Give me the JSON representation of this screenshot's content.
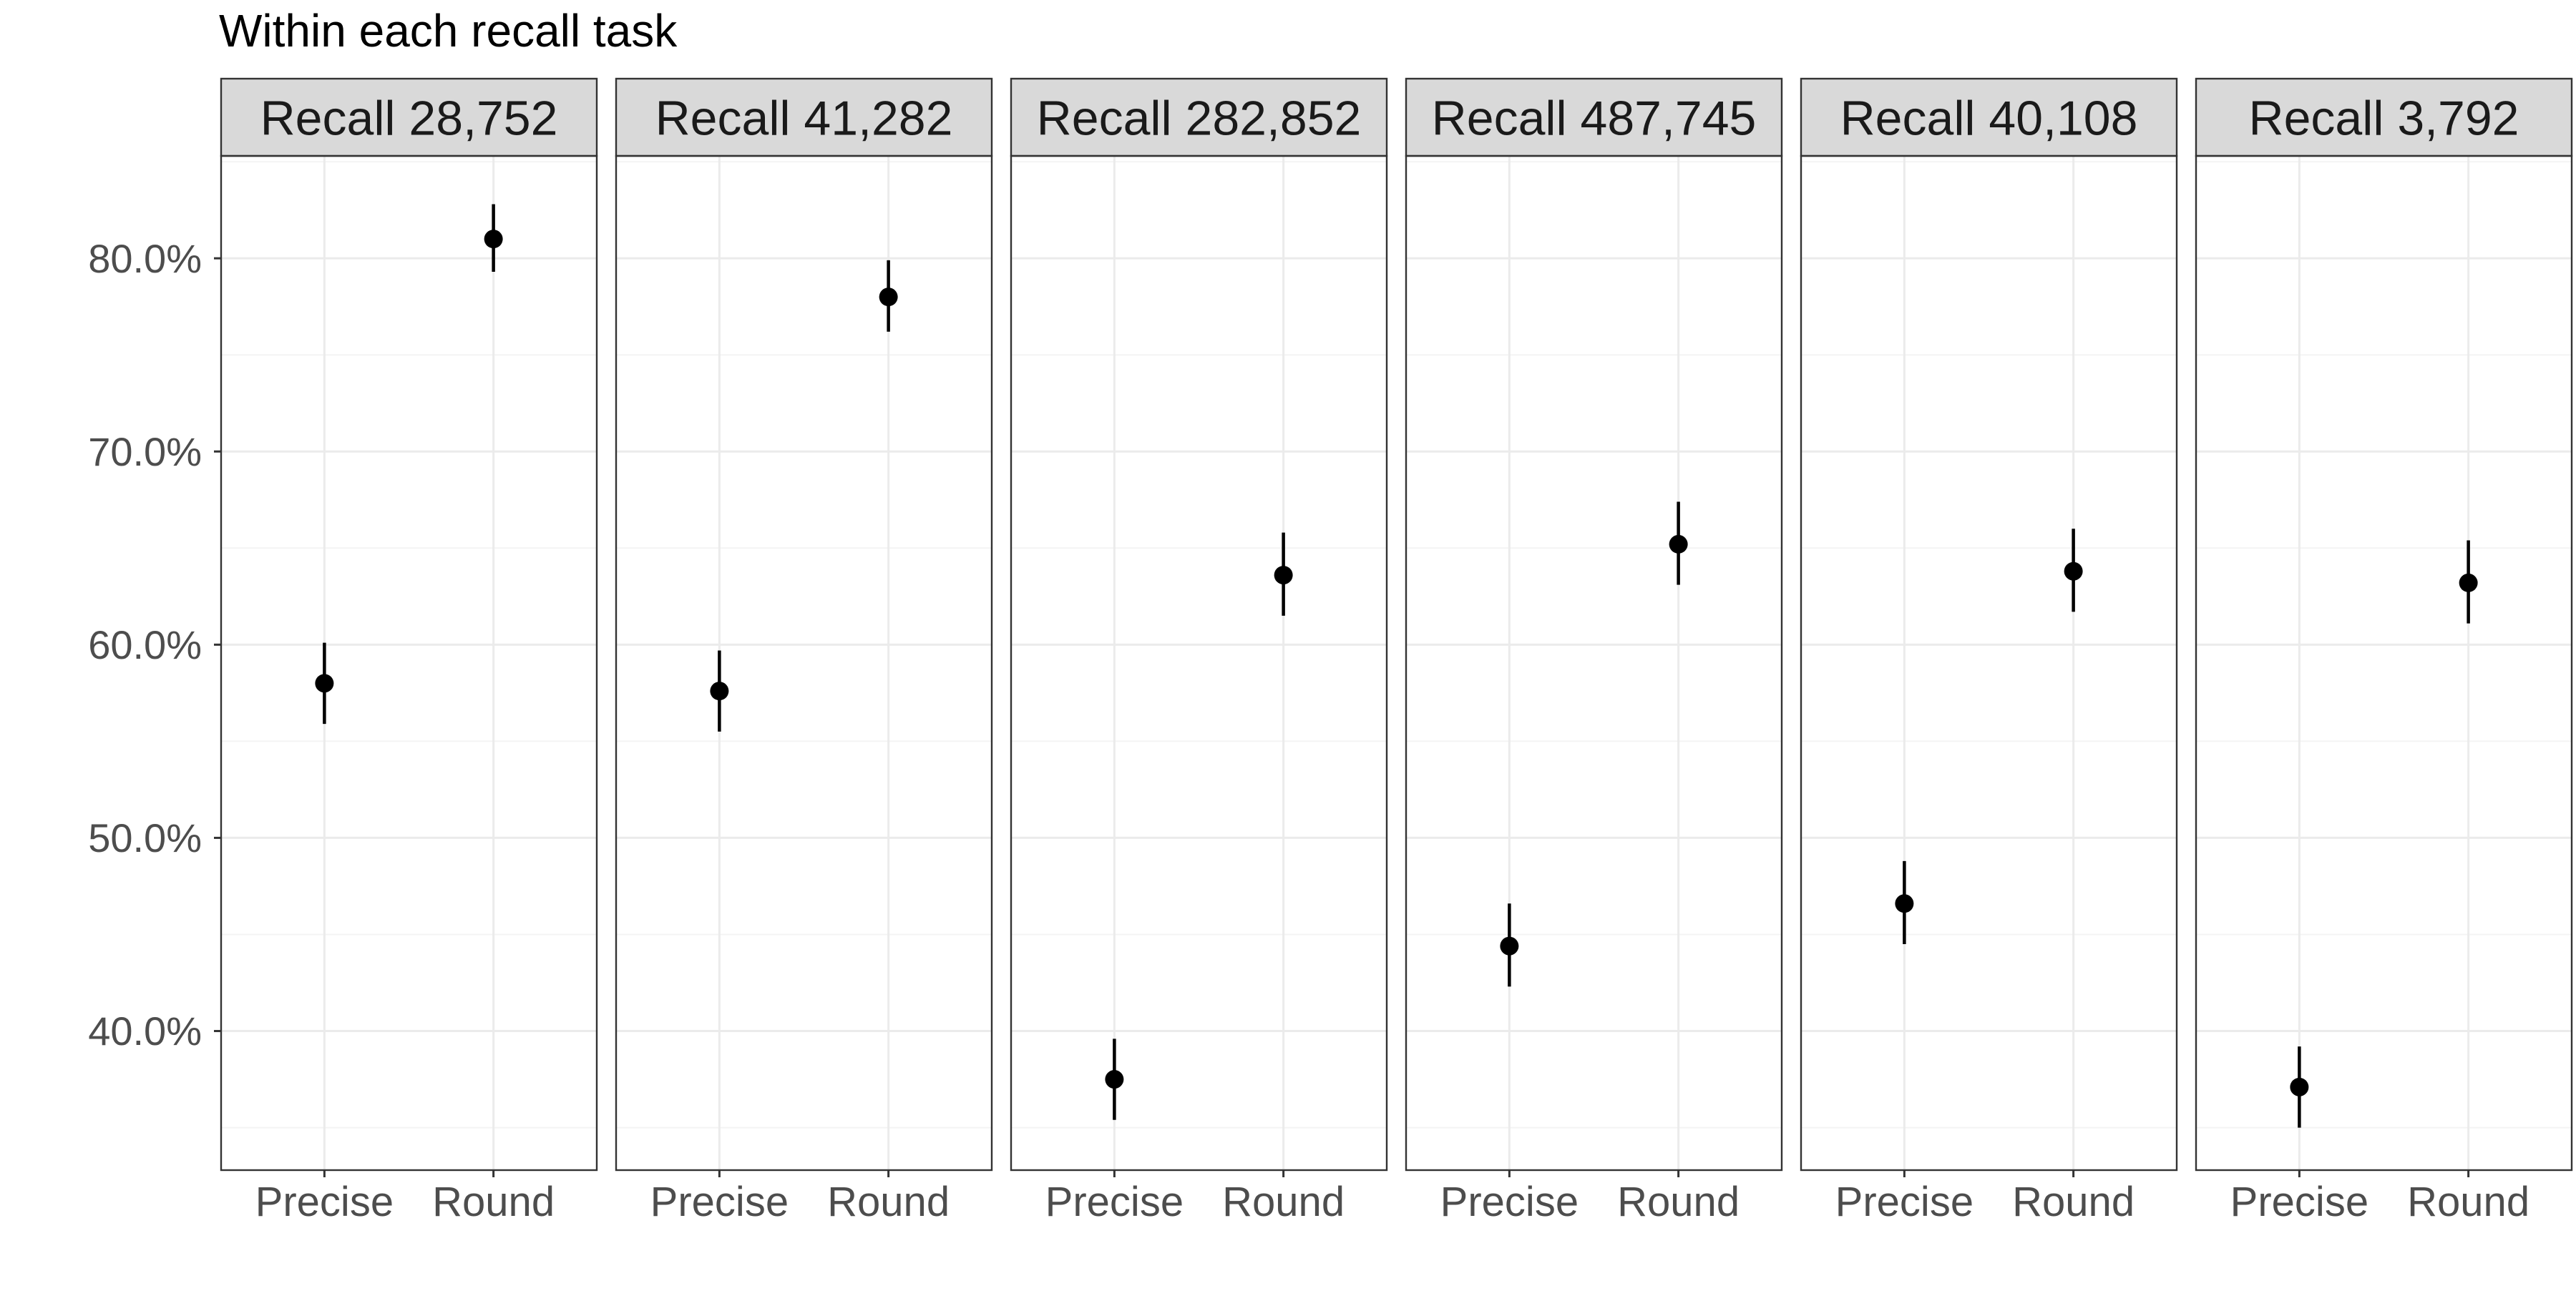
{
  "chart_data": {
    "type": "scatter",
    "title": "Within each recall task",
    "xlabel": "",
    "ylabel": "",
    "categories": [
      "Precise",
      "Round"
    ],
    "ylim": [
      32.8,
      85.3
    ],
    "y_ticks": [
      40,
      50,
      60,
      70,
      80
    ],
    "y_tick_labels": [
      "40.0%",
      "50.0%",
      "60.0%",
      "70.0%",
      "80.0%"
    ],
    "grid": true,
    "error_bars": true,
    "colors": {
      "point": "#000000",
      "strip_fill": "#D9D9D9",
      "strip_border": "#333333",
      "panel_border": "#333333",
      "grid_major": "#EBEBEB",
      "grid_minor": "#F4F4F4",
      "tick_text": "#4D4D4D"
    },
    "panels": [
      {
        "label": "Recall 28,752",
        "points": [
          {
            "x": "Precise",
            "y": 58.0,
            "lo": 55.9,
            "hi": 60.1
          },
          {
            "x": "Round",
            "y": 81.0,
            "lo": 79.3,
            "hi": 82.8
          }
        ]
      },
      {
        "label": "Recall 41,282",
        "points": [
          {
            "x": "Precise",
            "y": 57.6,
            "lo": 55.5,
            "hi": 59.7
          },
          {
            "x": "Round",
            "y": 78.0,
            "lo": 76.2,
            "hi": 79.9
          }
        ]
      },
      {
        "label": "Recall 282,852",
        "points": [
          {
            "x": "Precise",
            "y": 37.5,
            "lo": 35.4,
            "hi": 39.6
          },
          {
            "x": "Round",
            "y": 63.6,
            "lo": 61.5,
            "hi": 65.8
          }
        ]
      },
      {
        "label": "Recall 487,745",
        "points": [
          {
            "x": "Precise",
            "y": 44.4,
            "lo": 42.3,
            "hi": 46.6
          },
          {
            "x": "Round",
            "y": 65.2,
            "lo": 63.1,
            "hi": 67.4
          }
        ]
      },
      {
        "label": "Recall 40,108",
        "points": [
          {
            "x": "Precise",
            "y": 46.6,
            "lo": 44.5,
            "hi": 48.8
          },
          {
            "x": "Round",
            "y": 63.8,
            "lo": 61.7,
            "hi": 66.0
          }
        ]
      },
      {
        "label": "Recall 3,792",
        "points": [
          {
            "x": "Precise",
            "y": 37.1,
            "lo": 35.0,
            "hi": 39.2
          },
          {
            "x": "Round",
            "y": 63.2,
            "lo": 61.1,
            "hi": 65.4
          }
        ]
      }
    ]
  }
}
